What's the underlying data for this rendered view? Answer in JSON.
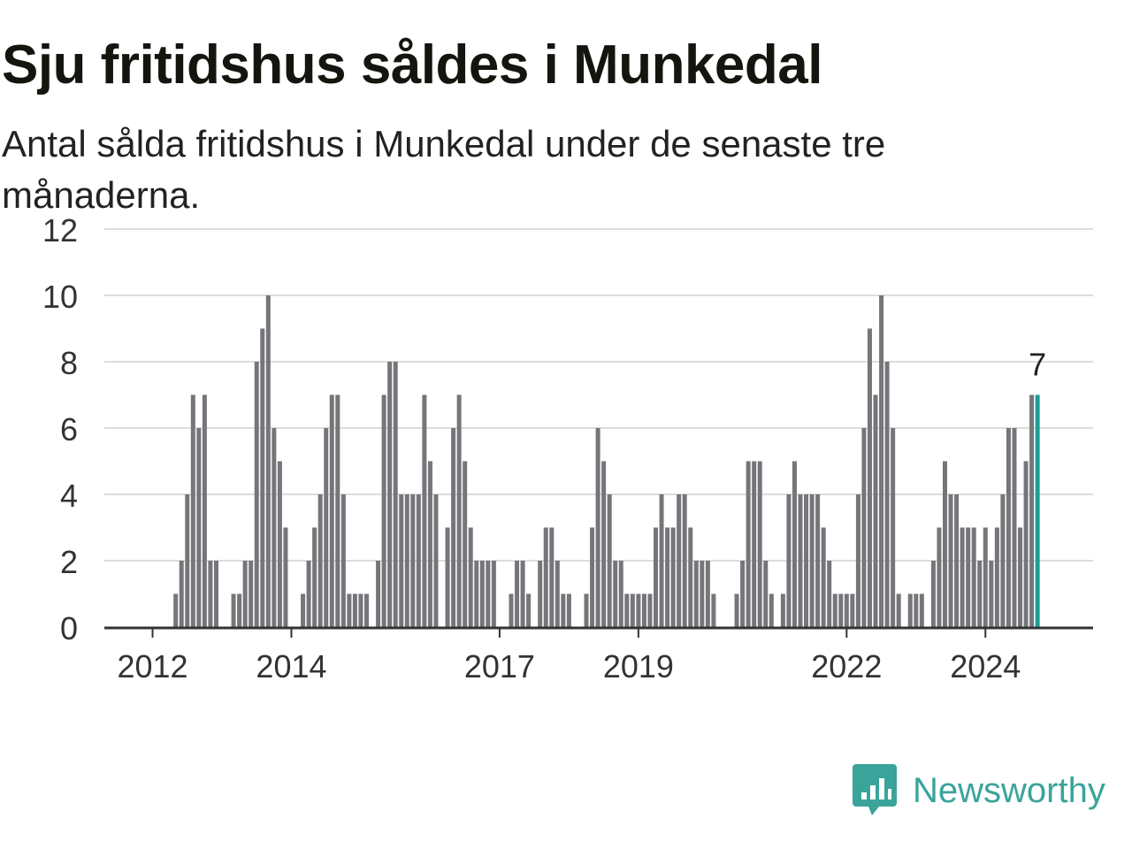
{
  "title": "Sju fritidshus såldes i Munkedal",
  "subtitle": "Antal sålda fritidshus i Munkedal under de senaste tre månaderna.",
  "brand": {
    "name": "Newsworthy",
    "logo_icon": "bar-chart-speech-bubble-icon"
  },
  "colors": {
    "bar": "#75757a",
    "highlight": "#1c9e94",
    "grid": "#dcdcdc",
    "axis": "#333333",
    "brand": "#3aa49a"
  },
  "chart_data": {
    "type": "bar",
    "title": "Sju fritidshus såldes i Munkedal",
    "subtitle": "Antal sålda fritidshus i Munkedal under de senaste tre månaderna.",
    "xlabel": "",
    "ylabel": "",
    "ylim": [
      0,
      12
    ],
    "yticks": [
      0,
      2,
      4,
      6,
      8,
      10,
      12
    ],
    "xticks": [
      "2012",
      "2014",
      "2017",
      "2019",
      "2022",
      "2024"
    ],
    "xtick_bar_index": [
      8,
      32,
      68,
      92,
      128,
      152
    ],
    "grid": true,
    "highlight_index": 161,
    "highlight_label": "7",
    "values": [
      0,
      0,
      0,
      0,
      0,
      0,
      0,
      0,
      0,
      0,
      0,
      0,
      1,
      2,
      4,
      7,
      6,
      7,
      2,
      2,
      0,
      0,
      1,
      1,
      2,
      2,
      8,
      9,
      10,
      6,
      5,
      3,
      0,
      0,
      1,
      2,
      3,
      4,
      6,
      7,
      7,
      4,
      1,
      1,
      1,
      1,
      0,
      2,
      7,
      8,
      8,
      4,
      4,
      4,
      4,
      7,
      5,
      4,
      0,
      3,
      6,
      7,
      5,
      3,
      2,
      2,
      2,
      2,
      0,
      0,
      1,
      2,
      2,
      1,
      0,
      2,
      3,
      3,
      2,
      1,
      1,
      0,
      0,
      1,
      3,
      6,
      5,
      4,
      2,
      2,
      1,
      1,
      1,
      1,
      1,
      3,
      4,
      3,
      3,
      4,
      4,
      3,
      2,
      2,
      2,
      1,
      0,
      0,
      0,
      1,
      2,
      5,
      5,
      5,
      2,
      1,
      0,
      1,
      4,
      5,
      4,
      4,
      4,
      4,
      3,
      2,
      1,
      1,
      1,
      1,
      4,
      6,
      9,
      7,
      10,
      8,
      6,
      1,
      0,
      1,
      1,
      1,
      0,
      2,
      3,
      5,
      4,
      4,
      3,
      3,
      3,
      2,
      3,
      2,
      3,
      4,
      6,
      6,
      3,
      5,
      7,
      7
    ]
  }
}
